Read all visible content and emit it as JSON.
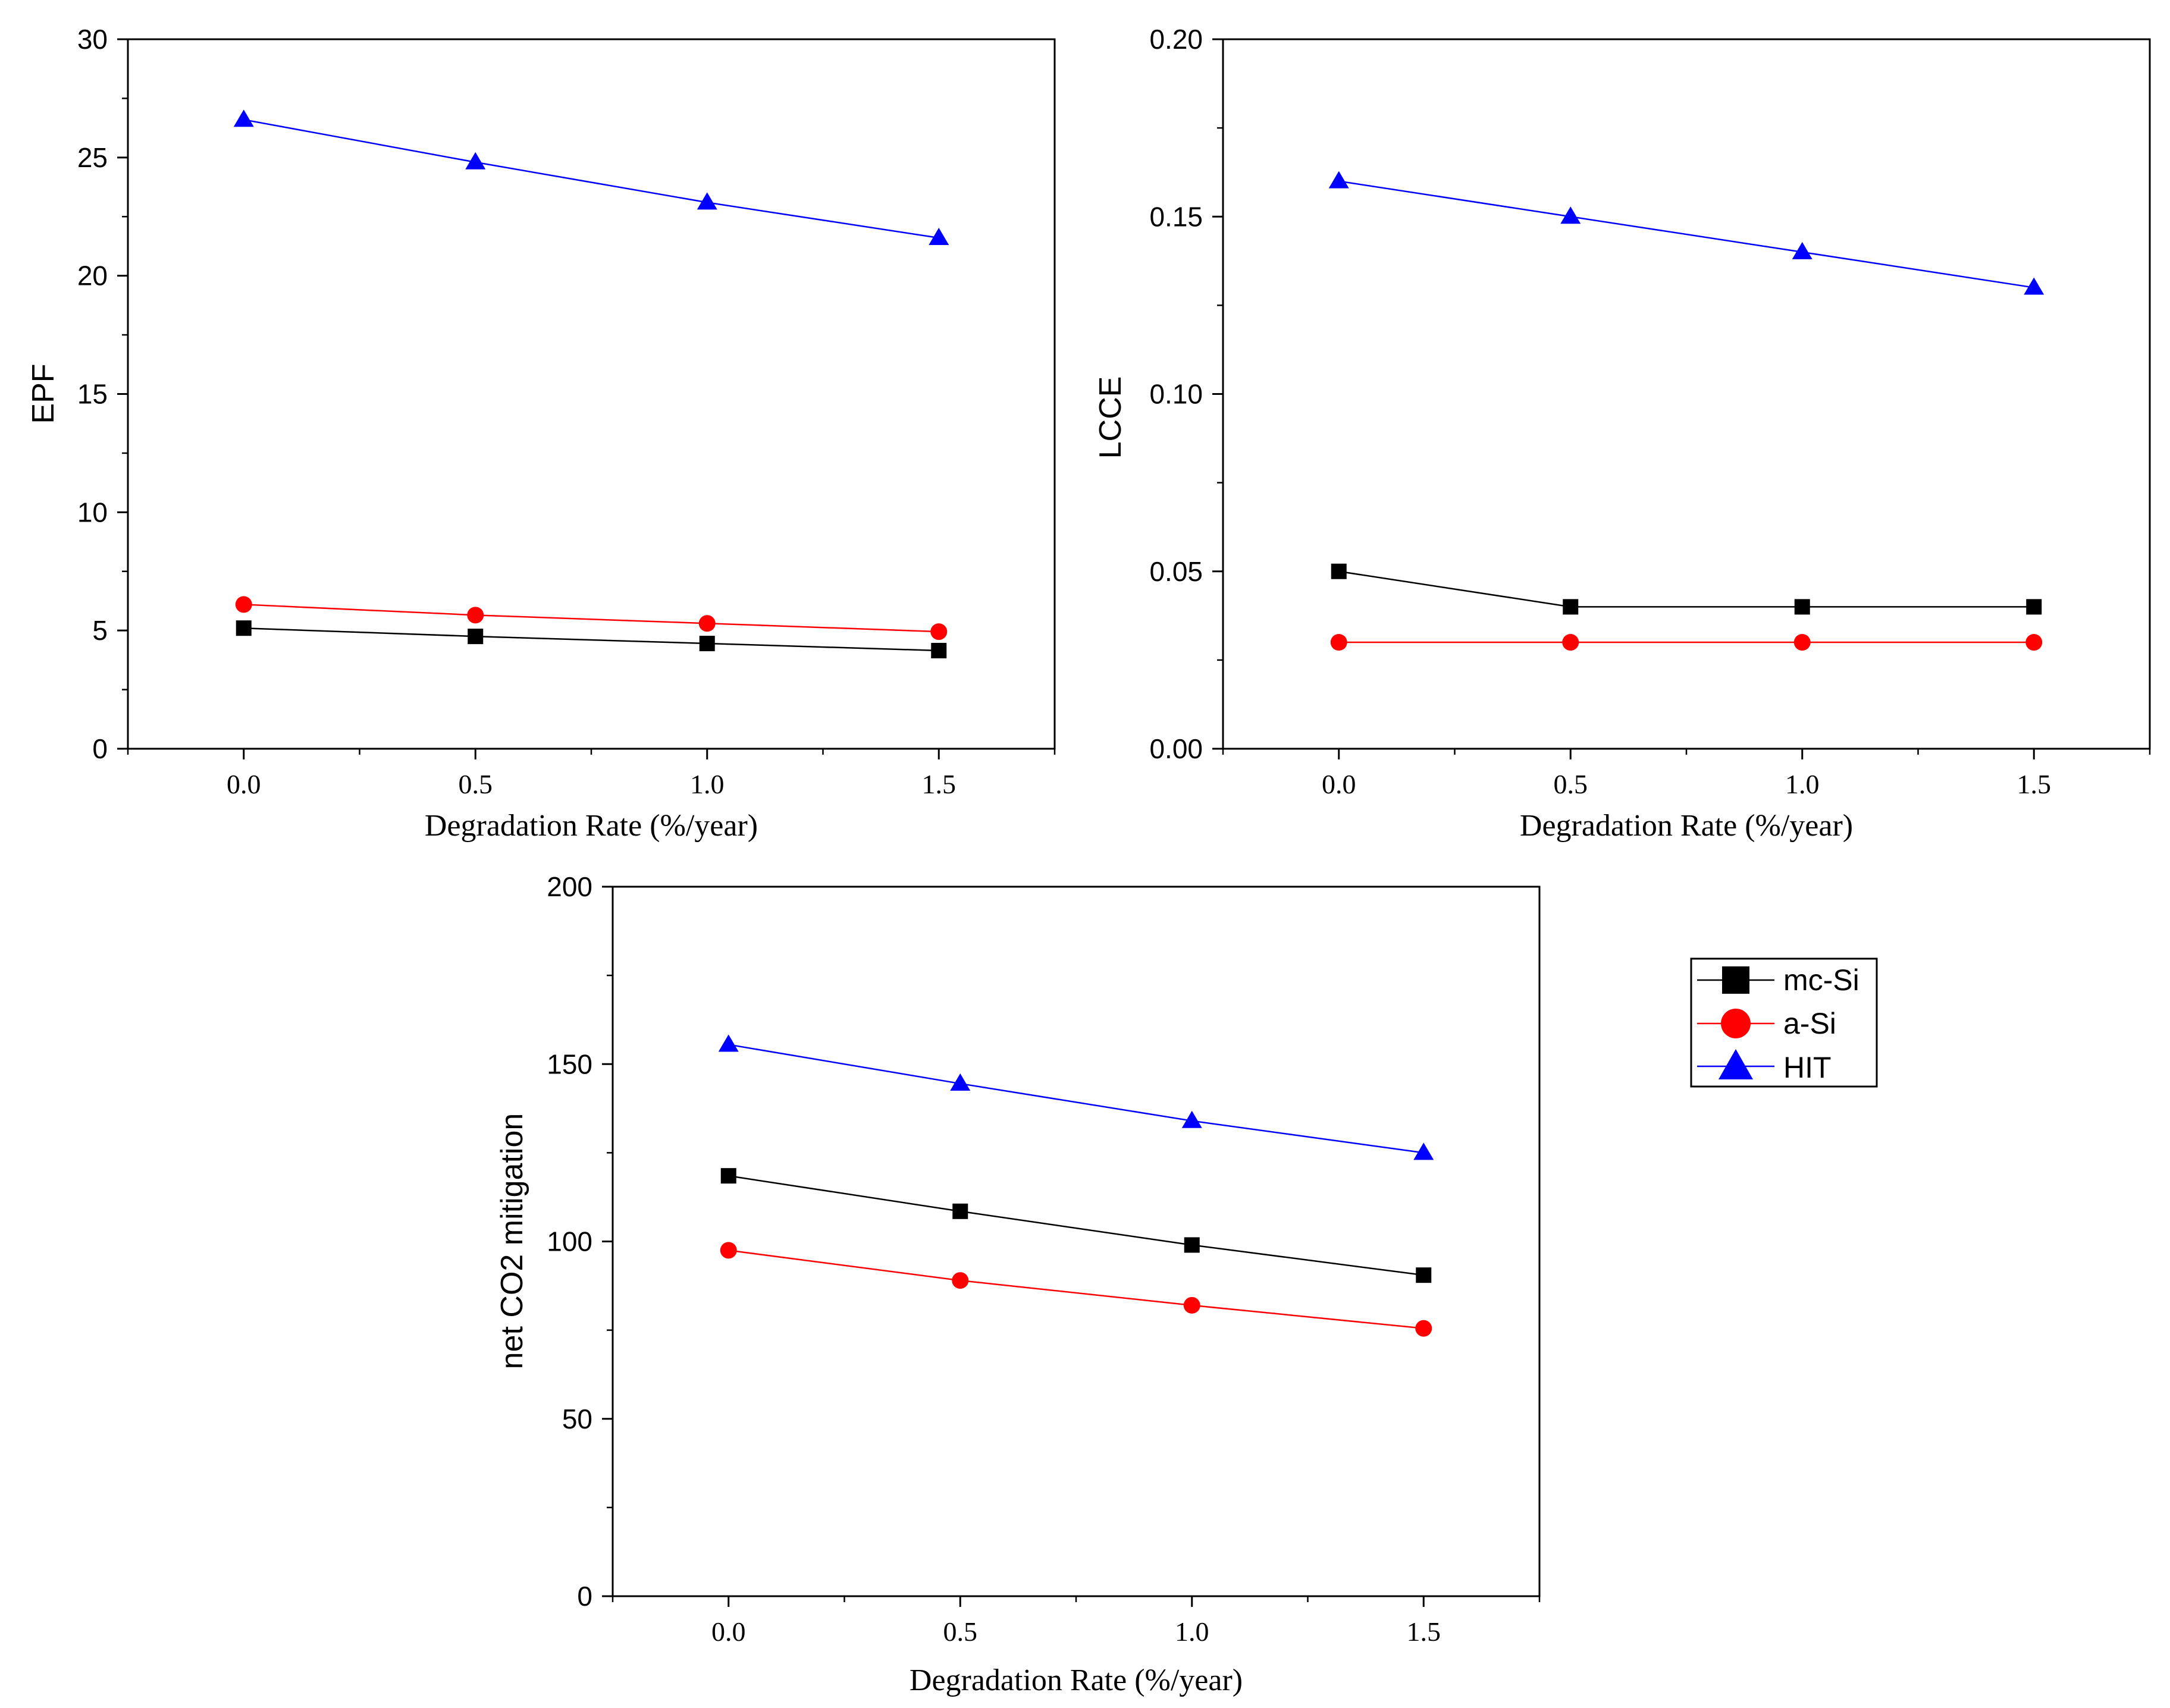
{
  "legend": {
    "entries": [
      {
        "name": "mc-Si",
        "color": "#000000",
        "marker": "square"
      },
      {
        "name": "a-Si",
        "color": "#ff0000",
        "marker": "circle"
      },
      {
        "name": "HIT",
        "color": "#0000ff",
        "marker": "triangle"
      }
    ]
  },
  "chart_data": [
    {
      "id": "epf",
      "type": "line",
      "xlabel": "Degradation Rate (%/year)",
      "ylabel": "EPF",
      "x": [
        0.0,
        0.5,
        1.0,
        1.5
      ],
      "xlim": [
        -0.25,
        1.75
      ],
      "ylim": [
        0,
        30
      ],
      "xticks": [
        "0.0",
        "0.5",
        "1.0",
        "1.5"
      ],
      "yticks": [
        "0",
        "5",
        "10",
        "15",
        "20",
        "25",
        "30"
      ],
      "yminor": 2.5,
      "series": [
        {
          "name": "mc-Si",
          "color": "#000000",
          "marker": "square",
          "values": [
            5.1,
            4.75,
            4.45,
            4.15
          ]
        },
        {
          "name": "a-Si",
          "color": "#ff0000",
          "marker": "circle",
          "values": [
            6.1,
            5.65,
            5.3,
            4.95
          ]
        },
        {
          "name": "HIT",
          "color": "#0000ff",
          "marker": "triangle",
          "values": [
            26.6,
            24.8,
            23.1,
            21.6
          ]
        }
      ]
    },
    {
      "id": "lcce",
      "type": "line",
      "xlabel": "Degradation Rate (%/year)",
      "ylabel": "LCCE",
      "x": [
        0.0,
        0.5,
        1.0,
        1.5
      ],
      "xlim": [
        -0.25,
        1.75
      ],
      "ylim": [
        0,
        0.2
      ],
      "xticks": [
        "0.0",
        "0.5",
        "1.0",
        "1.5"
      ],
      "yticks": [
        "0.00",
        "0.05",
        "0.10",
        "0.15",
        "0.20"
      ],
      "yminor": 0.025,
      "series": [
        {
          "name": "mc-Si",
          "color": "#000000",
          "marker": "square",
          "values": [
            0.05,
            0.04,
            0.04,
            0.04
          ]
        },
        {
          "name": "a-Si",
          "color": "#ff0000",
          "marker": "circle",
          "values": [
            0.03,
            0.03,
            0.03,
            0.03
          ]
        },
        {
          "name": "HIT",
          "color": "#0000ff",
          "marker": "triangle",
          "values": [
            0.16,
            0.15,
            0.14,
            0.13
          ]
        }
      ]
    },
    {
      "id": "co2",
      "type": "line",
      "xlabel": "Degradation Rate (%/year)",
      "ylabel": "net CO2 mitigation",
      "x": [
        0.0,
        0.5,
        1.0,
        1.5
      ],
      "xlim": [
        -0.25,
        1.75
      ],
      "ylim": [
        0,
        200
      ],
      "xticks": [
        "0.0",
        "0.5",
        "1.0",
        "1.5"
      ],
      "yticks": [
        "0",
        "50",
        "100",
        "150",
        "200"
      ],
      "yminor": 25,
      "series": [
        {
          "name": "mc-Si",
          "color": "#000000",
          "marker": "square",
          "values": [
            118.5,
            108.5,
            99,
            90.5
          ]
        },
        {
          "name": "a-Si",
          "color": "#ff0000",
          "marker": "circle",
          "values": [
            97.5,
            89,
            82,
            75.5
          ]
        },
        {
          "name": "HIT",
          "color": "#0000ff",
          "marker": "triangle",
          "values": [
            155.5,
            144.5,
            134,
            125
          ]
        }
      ]
    }
  ]
}
